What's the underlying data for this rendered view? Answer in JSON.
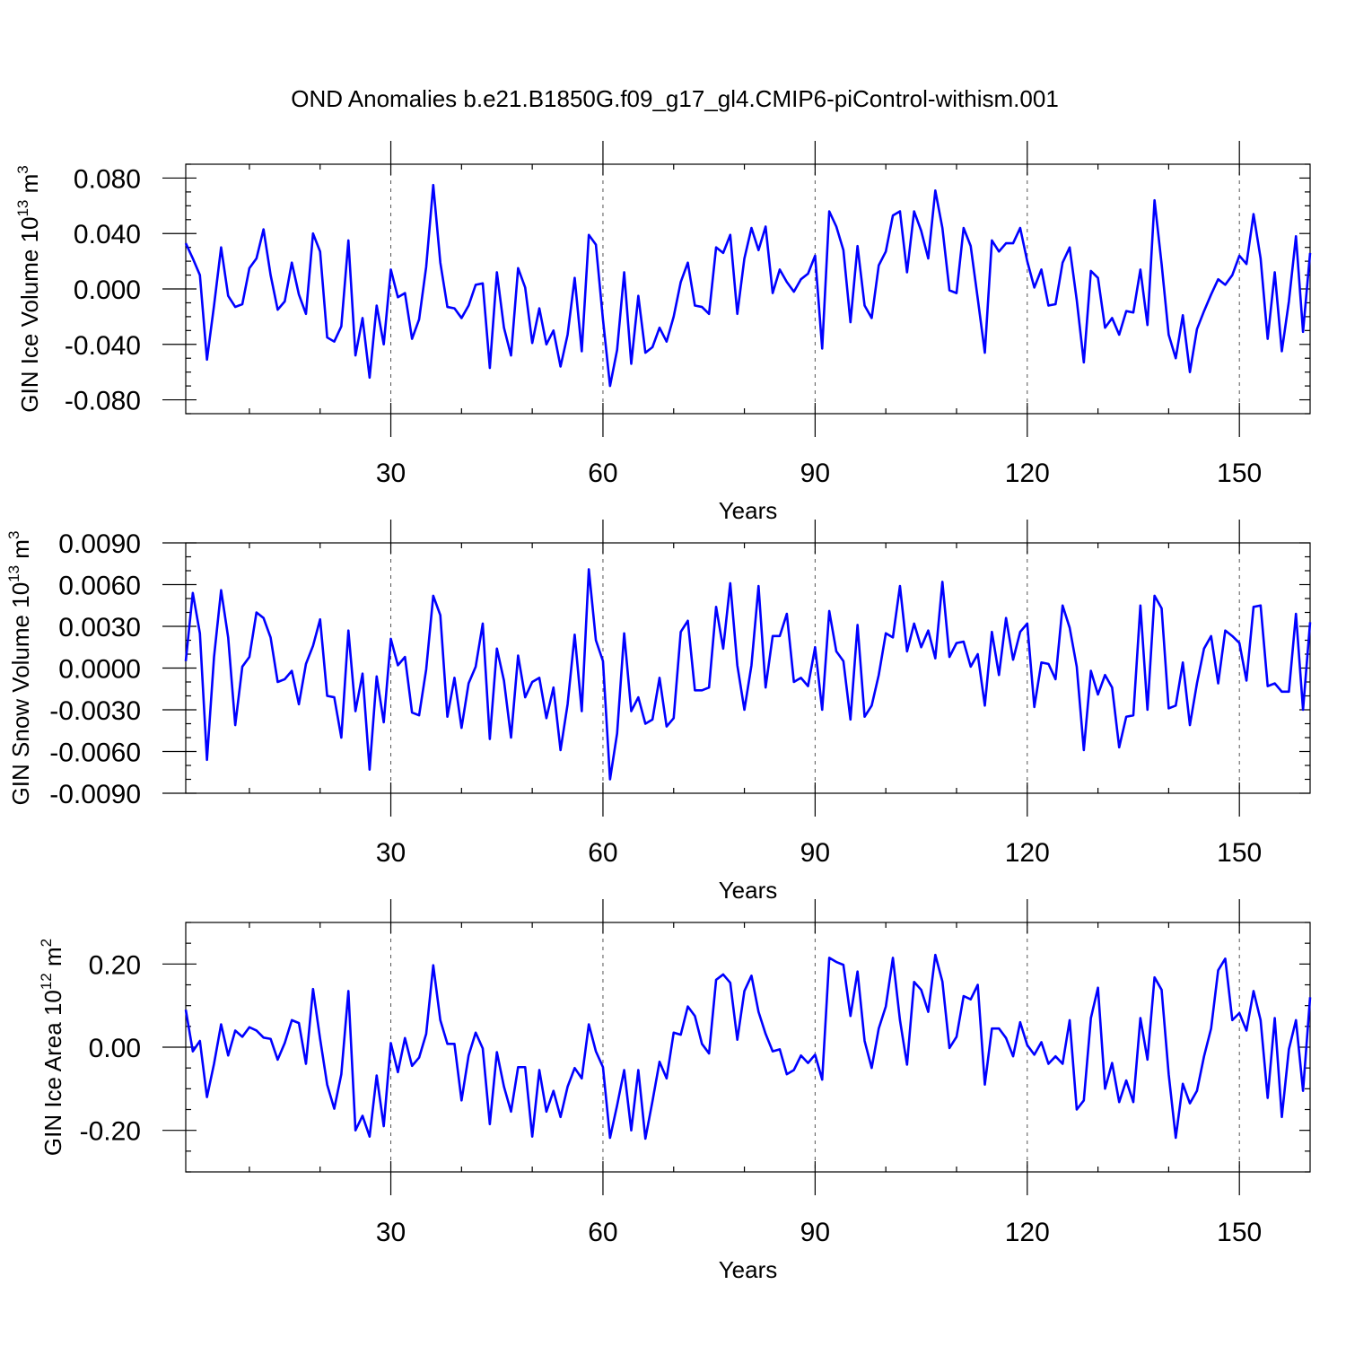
{
  "title": "OND Anomalies b.e21.B1850G.f09_g17_gl4.CMIP6-piControl-withism.001",
  "colors": {
    "line": "#0000ff",
    "grid": "#555555"
  },
  "chart_data": [
    {
      "type": "line",
      "id": "ice-volume",
      "ylabel_main": "GIN Ice Volume 10",
      "ylabel_exp": "13",
      "ylabel_unit": " m",
      "ylabel_unit_exp": "3",
      "xlabel": "Years",
      "xlim": [
        1,
        160
      ],
      "ylim": [
        -0.09,
        0.09
      ],
      "xticks": [
        30,
        60,
        90,
        120,
        150
      ],
      "xtick_labels": [
        "30",
        "60",
        "90",
        "120",
        "150"
      ],
      "yticks": [
        -0.08,
        -0.04,
        0.0,
        0.04,
        0.08
      ],
      "ytick_labels": [
        "-0.080",
        "-0.040",
        "0.000",
        "0.040",
        "0.080"
      ],
      "yminor": [
        -0.09,
        -0.07,
        -0.06,
        -0.05,
        -0.03,
        -0.02,
        -0.01,
        0.01,
        0.02,
        0.03,
        0.05,
        0.06,
        0.07,
        0.09
      ],
      "grid_x": [
        30,
        60,
        90,
        120,
        150
      ],
      "series": [
        {
          "values": [
            0.033,
            0.022,
            0.01,
            -0.051,
            -0.012,
            0.03,
            -0.005,
            -0.013,
            -0.011,
            0.015,
            0.022,
            0.043,
            0.01,
            -0.015,
            -0.009,
            0.019,
            -0.004,
            -0.018,
            0.04,
            0.027,
            -0.035,
            -0.038,
            -0.027,
            0.035,
            -0.048,
            -0.021,
            -0.064,
            -0.012,
            -0.04,
            0.014,
            -0.006,
            -0.003,
            -0.036,
            -0.022,
            0.016,
            0.075,
            0.019,
            -0.013,
            -0.014,
            -0.021,
            -0.012,
            0.003,
            0.004,
            -0.057,
            0.012,
            -0.028,
            -0.048,
            0.015,
            0.001,
            -0.039,
            -0.014,
            -0.04,
            -0.03,
            -0.056,
            -0.033,
            0.008,
            -0.045,
            0.039,
            0.032,
            -0.022,
            -0.07,
            -0.044,
            0.012,
            -0.054,
            -0.005,
            -0.046,
            -0.042,
            -0.028,
            -0.038,
            -0.02,
            0.005,
            0.019,
            -0.012,
            -0.013,
            -0.018,
            0.03,
            0.026,
            0.039,
            -0.018,
            0.022,
            0.044,
            0.028,
            0.045,
            -0.003,
            0.014,
            0.005,
            -0.002,
            0.007,
            0.011,
            0.024,
            -0.043,
            0.056,
            0.045,
            0.028,
            -0.024,
            0.031,
            -0.012,
            -0.021,
            0.017,
            0.027,
            0.053,
            0.056,
            0.012,
            0.056,
            0.042,
            0.022,
            0.071,
            0.044,
            -0.001,
            -0.003,
            0.044,
            0.031,
            -0.007,
            -0.046,
            0.035,
            0.027,
            0.033,
            0.033,
            0.044,
            0.02,
            0.001,
            0.014,
            -0.012,
            -0.011,
            0.019,
            0.03,
            -0.008,
            -0.053,
            0.013,
            0.008,
            -0.028,
            -0.021,
            -0.033,
            -0.016,
            -0.017,
            0.014,
            -0.026,
            0.064,
            0.018,
            -0.033,
            -0.05,
            -0.019,
            -0.06,
            -0.029,
            -0.016,
            -0.004,
            0.007,
            0.003,
            0.01,
            0.024,
            0.018,
            0.054,
            0.022,
            -0.036,
            0.012,
            -0.045,
            -0.009,
            0.038,
            -0.031,
            0.026
          ]
        }
      ]
    },
    {
      "type": "line",
      "id": "snow-volume",
      "ylabel_main": "GIN Snow Volume 10",
      "ylabel_exp": "13",
      "ylabel_unit": " m",
      "ylabel_unit_exp": "3",
      "xlabel": "Years",
      "xlim": [
        1,
        160
      ],
      "ylim": [
        -0.009,
        0.009
      ],
      "xticks": [
        30,
        60,
        90,
        120,
        150
      ],
      "xtick_labels": [
        "30",
        "60",
        "90",
        "120",
        "150"
      ],
      "yticks": [
        -0.009,
        -0.006,
        -0.003,
        0.0,
        0.003,
        0.006,
        0.009
      ],
      "ytick_labels": [
        "-0.0090",
        "-0.0060",
        "-0.0030",
        "0.0000",
        "0.0030",
        "0.0060",
        "0.0090"
      ],
      "yminor": [
        -0.008,
        -0.007,
        -0.005,
        -0.004,
        -0.002,
        -0.001,
        0.001,
        0.002,
        0.004,
        0.005,
        0.007,
        0.008
      ],
      "grid_x": [
        30,
        60,
        90,
        120,
        150
      ],
      "series": [
        {
          "values": [
            0.0005,
            0.0054,
            0.0025,
            -0.0066,
            0.0008,
            0.0056,
            0.0022,
            -0.0041,
            0.0001,
            0.0008,
            0.004,
            0.0036,
            0.0022,
            -0.001,
            -0.0008,
            -0.0002,
            -0.0026,
            0.0003,
            0.0016,
            0.0035,
            -0.002,
            -0.0021,
            -0.005,
            0.0027,
            -0.0031,
            -0.0004,
            -0.0073,
            -0.0006,
            -0.0039,
            0.0021,
            0.0002,
            0.0008,
            -0.0032,
            -0.0034,
            -0.0001,
            0.0052,
            0.0038,
            -0.0035,
            -0.0007,
            -0.0043,
            -0.0011,
            0.0001,
            0.0032,
            -0.0051,
            0.0014,
            -0.0009,
            -0.005,
            0.0009,
            -0.0021,
            -0.001,
            -0.0007,
            -0.0036,
            -0.0014,
            -0.0059,
            -0.0026,
            0.0024,
            -0.0031,
            0.0071,
            0.002,
            0.0005,
            -0.008,
            -0.0047,
            0.0025,
            -0.0031,
            -0.0021,
            -0.004,
            -0.0037,
            -0.0007,
            -0.0042,
            -0.0036,
            0.0026,
            0.0034,
            -0.0016,
            -0.0016,
            -0.0014,
            0.0044,
            0.0014,
            0.0061,
            0.0002,
            -0.003,
            0.0002,
            0.0059,
            -0.0014,
            0.0023,
            0.0023,
            0.0039,
            -0.001,
            -0.0007,
            -0.0013,
            0.0015,
            -0.003,
            0.0041,
            0.0012,
            0.0005,
            -0.0037,
            0.0031,
            -0.0035,
            -0.0027,
            -0.0005,
            0.0025,
            0.0022,
            0.0059,
            0.0012,
            0.0032,
            0.0015,
            0.0027,
            0.0007,
            0.0062,
            0.0008,
            0.0018,
            0.0019,
            0.0001,
            0.001,
            -0.0027,
            0.0026,
            -0.0005,
            0.0036,
            0.0006,
            0.0026,
            0.0032,
            -0.0028,
            0.0004,
            0.0003,
            -0.0008,
            0.0045,
            0.0029,
            0.0001,
            -0.0059,
            -0.0002,
            -0.0019,
            -0.0005,
            -0.0014,
            -0.0057,
            -0.0035,
            -0.0034,
            0.0045,
            -0.003,
            0.0052,
            0.0043,
            -0.0029,
            -0.0027,
            0.0004,
            -0.0041,
            -0.0011,
            0.0014,
            0.0023,
            -0.0011,
            0.0027,
            0.0023,
            0.0018,
            -0.0009,
            0.0044,
            0.0045,
            -0.0013,
            -0.0011,
            -0.0017,
            -0.0017,
            0.0039,
            -0.003,
            0.0033
          ]
        }
      ]
    },
    {
      "type": "line",
      "id": "ice-area",
      "ylabel_main": "GIN Ice Area 10",
      "ylabel_exp": "12",
      "ylabel_unit": " m",
      "ylabel_unit_exp": "2",
      "xlabel": "Years",
      "xlim": [
        1,
        160
      ],
      "ylim": [
        -0.3,
        0.3
      ],
      "xticks": [
        30,
        60,
        90,
        120,
        150
      ],
      "xtick_labels": [
        "30",
        "60",
        "90",
        "120",
        "150"
      ],
      "yticks": [
        -0.2,
        0.0,
        0.2
      ],
      "ytick_labels": [
        "-0.20",
        "0.00",
        "0.20"
      ],
      "yminor": [
        -0.3,
        -0.25,
        -0.15,
        -0.1,
        -0.05,
        0.05,
        0.1,
        0.15,
        0.25,
        0.3
      ],
      "grid_x": [
        30,
        60,
        90,
        120,
        150
      ],
      "series": [
        {
          "values": [
            0.09,
            -0.01,
            0.015,
            -0.12,
            -0.04,
            0.055,
            -0.02,
            0.04,
            0.025,
            0.048,
            0.04,
            0.023,
            0.02,
            -0.03,
            0.01,
            0.065,
            0.058,
            -0.04,
            0.14,
            0.02,
            -0.09,
            -0.148,
            -0.065,
            0.135,
            -0.2,
            -0.165,
            -0.215,
            -0.068,
            -0.19,
            0.01,
            -0.06,
            0.022,
            -0.045,
            -0.025,
            0.032,
            0.197,
            0.065,
            0.008,
            0.008,
            -0.128,
            -0.02,
            0.035,
            -0.003,
            -0.185,
            -0.012,
            -0.095,
            -0.155,
            -0.048,
            -0.048,
            -0.215,
            -0.055,
            -0.155,
            -0.105,
            -0.168,
            -0.095,
            -0.05,
            -0.075,
            0.055,
            -0.01,
            -0.048,
            -0.218,
            -0.14,
            -0.055,
            -0.2,
            -0.055,
            -0.22,
            -0.13,
            -0.035,
            -0.075,
            0.035,
            0.03,
            0.098,
            0.075,
            0.008,
            -0.015,
            0.162,
            0.175,
            0.155,
            0.018,
            0.135,
            0.172,
            0.085,
            0.032,
            -0.01,
            -0.005,
            -0.065,
            -0.055,
            -0.02,
            -0.038,
            -0.018,
            -0.078,
            0.215,
            0.205,
            0.198,
            0.075,
            0.182,
            0.015,
            -0.05,
            0.045,
            0.098,
            0.215,
            0.065,
            -0.042,
            0.157,
            0.138,
            0.085,
            0.222,
            0.158,
            -0.002,
            0.025,
            0.123,
            0.115,
            0.15,
            -0.09,
            0.045,
            0.045,
            0.022,
            -0.022,
            0.06,
            0.005,
            -0.018,
            0.012,
            -0.04,
            -0.022,
            -0.04,
            0.065,
            -0.15,
            -0.128,
            0.07,
            0.143,
            -0.1,
            -0.038,
            -0.132,
            -0.08,
            -0.132,
            0.07,
            -0.03,
            0.168,
            0.138,
            -0.065,
            -0.218,
            -0.088,
            -0.135,
            -0.105,
            -0.022,
            0.045,
            0.185,
            0.213,
            0.065,
            0.082,
            0.04,
            0.135,
            0.065,
            -0.122,
            0.07,
            -0.168,
            -0.005,
            0.065,
            -0.105,
            0.12
          ]
        }
      ]
    }
  ]
}
